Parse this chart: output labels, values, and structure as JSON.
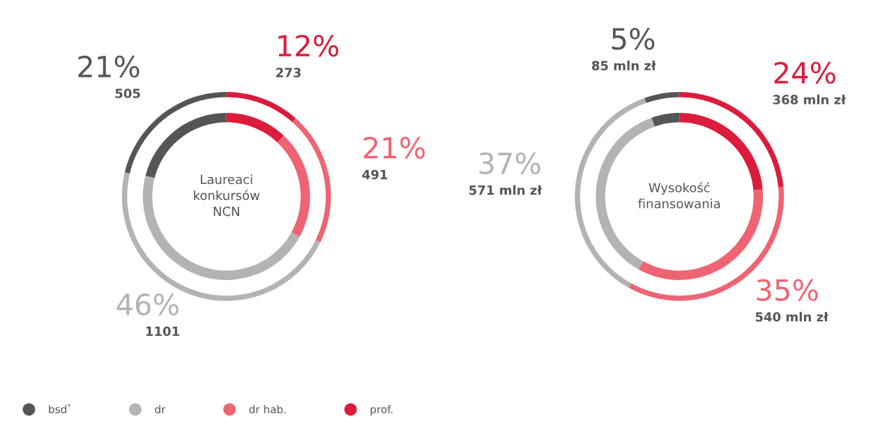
{
  "chart_data": [
    {
      "type": "donut",
      "title": "Laureaci\nkonkursów\nNCN",
      "categories": [
        "bsd$^{*}$",
        "dr",
        "dr hab.",
        "prof."
      ],
      "colors": [
        "#555555",
        "#b3b3b3",
        "#ef6473",
        "#dc1c3c"
      ],
      "series": [
        {
          "values": [
            505,
            1101,
            491,
            273
          ],
          "value_labels": [
            "21%\n505",
            "46%\n1101",
            "21%\n491",
            "12%\n273"
          ]
        },
        {
          "values": [
            21,
            46,
            21,
            12
          ]
        }
      ],
      "legend": "bottom left"
    },
    {
      "type": "donut",
      "title": "Wysokość\nfinansowania",
      "categories": [
        null,
        null,
        null,
        null
      ],
      "colors": [
        "#555555",
        "#b3b3b3",
        "#ef6473",
        "#dc1c3c"
      ],
      "series": [
        {
          "values": [
            85,
            571,
            540,
            368
          ],
          "value_labels": [
            "5%\n85 mln zł",
            "37%\n571 mln zł",
            "35%\n540 mln zł",
            "24%\n368 mln zł"
          ]
        },
        {
          "values": [
            5.4,
            36.5,
            34.5,
            23.6
          ]
        }
      ]
    }
  ]
}
